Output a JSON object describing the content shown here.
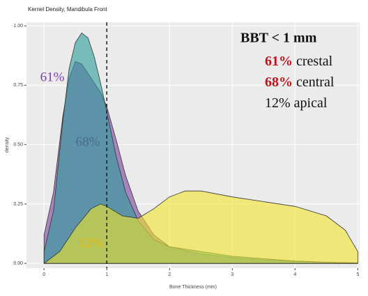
{
  "chart_data": {
    "type": "density",
    "title": "Kernel Density, Mandibula Front",
    "x_label": "Bone Thickness (mm)",
    "y_label": "density",
    "xlim": [
      -0.28,
      5.03
    ],
    "ylim": [
      -0.02,
      1.015
    ],
    "xticks": [
      0,
      1,
      2,
      3,
      4,
      5
    ],
    "yticks": [
      {
        "value": 0,
        "label": "0.00"
      },
      {
        "value": 0.25,
        "label": "0.25"
      },
      {
        "value": 0.5,
        "label": "0.50"
      },
      {
        "value": 0.75,
        "label": "0.75"
      },
      {
        "value": 1,
        "label": "1.00"
      }
    ],
    "grid": true,
    "vline": 1,
    "series": [
      {
        "color": "#7b3f9e",
        "x": [
          0,
          0.15,
          0.3,
          0.4,
          0.5,
          0.6,
          0.75,
          0.9,
          1.0,
          1.15,
          1.3,
          1.5,
          1.75,
          2,
          2.5,
          3,
          3.5,
          4,
          4.5,
          5
        ],
        "values": [
          0.12,
          0.3,
          0.62,
          0.78,
          0.85,
          0.84,
          0.78,
          0.72,
          0.66,
          0.52,
          0.37,
          0.22,
          0.12,
          0.07,
          0.04,
          0.025,
          0.015,
          0.01,
          0.005,
          0.002
        ]
      },
      {
        "color": "#2a9d9a",
        "x": [
          0,
          0.15,
          0.3,
          0.4,
          0.5,
          0.6,
          0.7,
          0.8,
          0.9,
          1.0,
          1.15,
          1.3,
          1.5,
          1.75,
          2,
          2.5,
          3,
          3.5,
          4,
          4.5,
          5
        ],
        "values": [
          0.05,
          0.22,
          0.6,
          0.82,
          0.93,
          0.97,
          0.95,
          0.87,
          0.76,
          0.64,
          0.45,
          0.3,
          0.18,
          0.1,
          0.07,
          0.05,
          0.03,
          0.02,
          0.01,
          0.005,
          0.002
        ]
      },
      {
        "color": "#f2e52a",
        "x": [
          0,
          0.25,
          0.5,
          0.75,
          0.9,
          1.0,
          1.25,
          1.5,
          1.75,
          2,
          2.25,
          2.5,
          3,
          3.5,
          4,
          4.5,
          4.8,
          5
        ],
        "values": [
          0.0,
          0.05,
          0.15,
          0.23,
          0.25,
          0.24,
          0.2,
          0.19,
          0.23,
          0.28,
          0.305,
          0.305,
          0.28,
          0.26,
          0.24,
          0.2,
          0.14,
          0.05
        ]
      }
    ],
    "curve_labels": [
      {
        "text": "61%",
        "color": "#7a3fa8"
      },
      {
        "text": "68%",
        "color": "#4b6a8c"
      },
      {
        "text": "12%",
        "color": "#f0b400"
      }
    ],
    "box": {
      "heading": "BBT < 1 mm",
      "lines": [
        {
          "value": "61%",
          "text": "crestal",
          "bold": true
        },
        {
          "value": "68%",
          "text": "central",
          "bold": true
        },
        {
          "value": "12%",
          "text": "apical",
          "bold": false
        }
      ]
    }
  }
}
